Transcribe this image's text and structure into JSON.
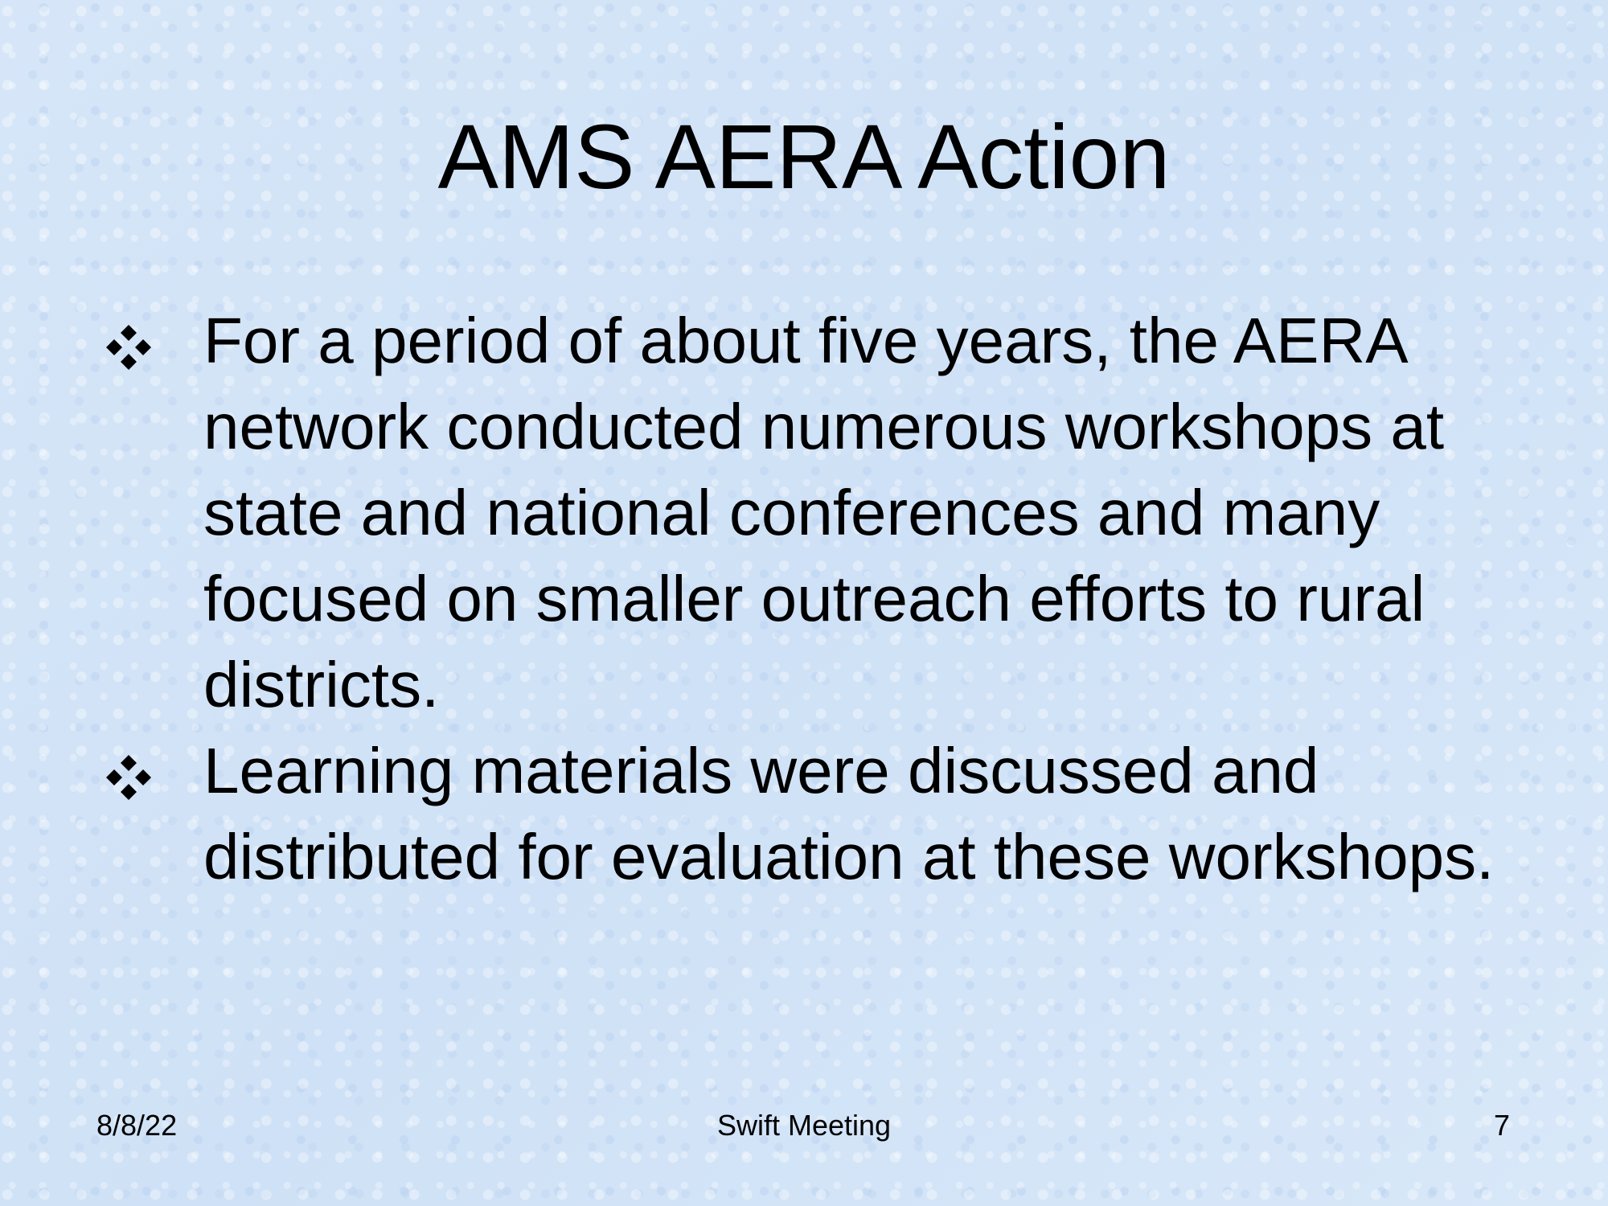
{
  "slide": {
    "title": "AMS AERA Action",
    "bullets": [
      {
        "text": "For a period of about five years, the AERA network conducted numerous workshops at state and national conferences and many focused on smaller outreach efforts to rural districts.",
        "icon": "diamond-bullet-icon"
      },
      {
        "text": "Learning materials were discussed and distributed for evaluation at these workshops.",
        "icon": "diamond-bullet-icon"
      }
    ],
    "footer": {
      "date": "8/8/22",
      "title": "Swift Meeting",
      "page": "7"
    }
  },
  "colors": {
    "background": "#d3e4f7",
    "text": "#000000"
  }
}
